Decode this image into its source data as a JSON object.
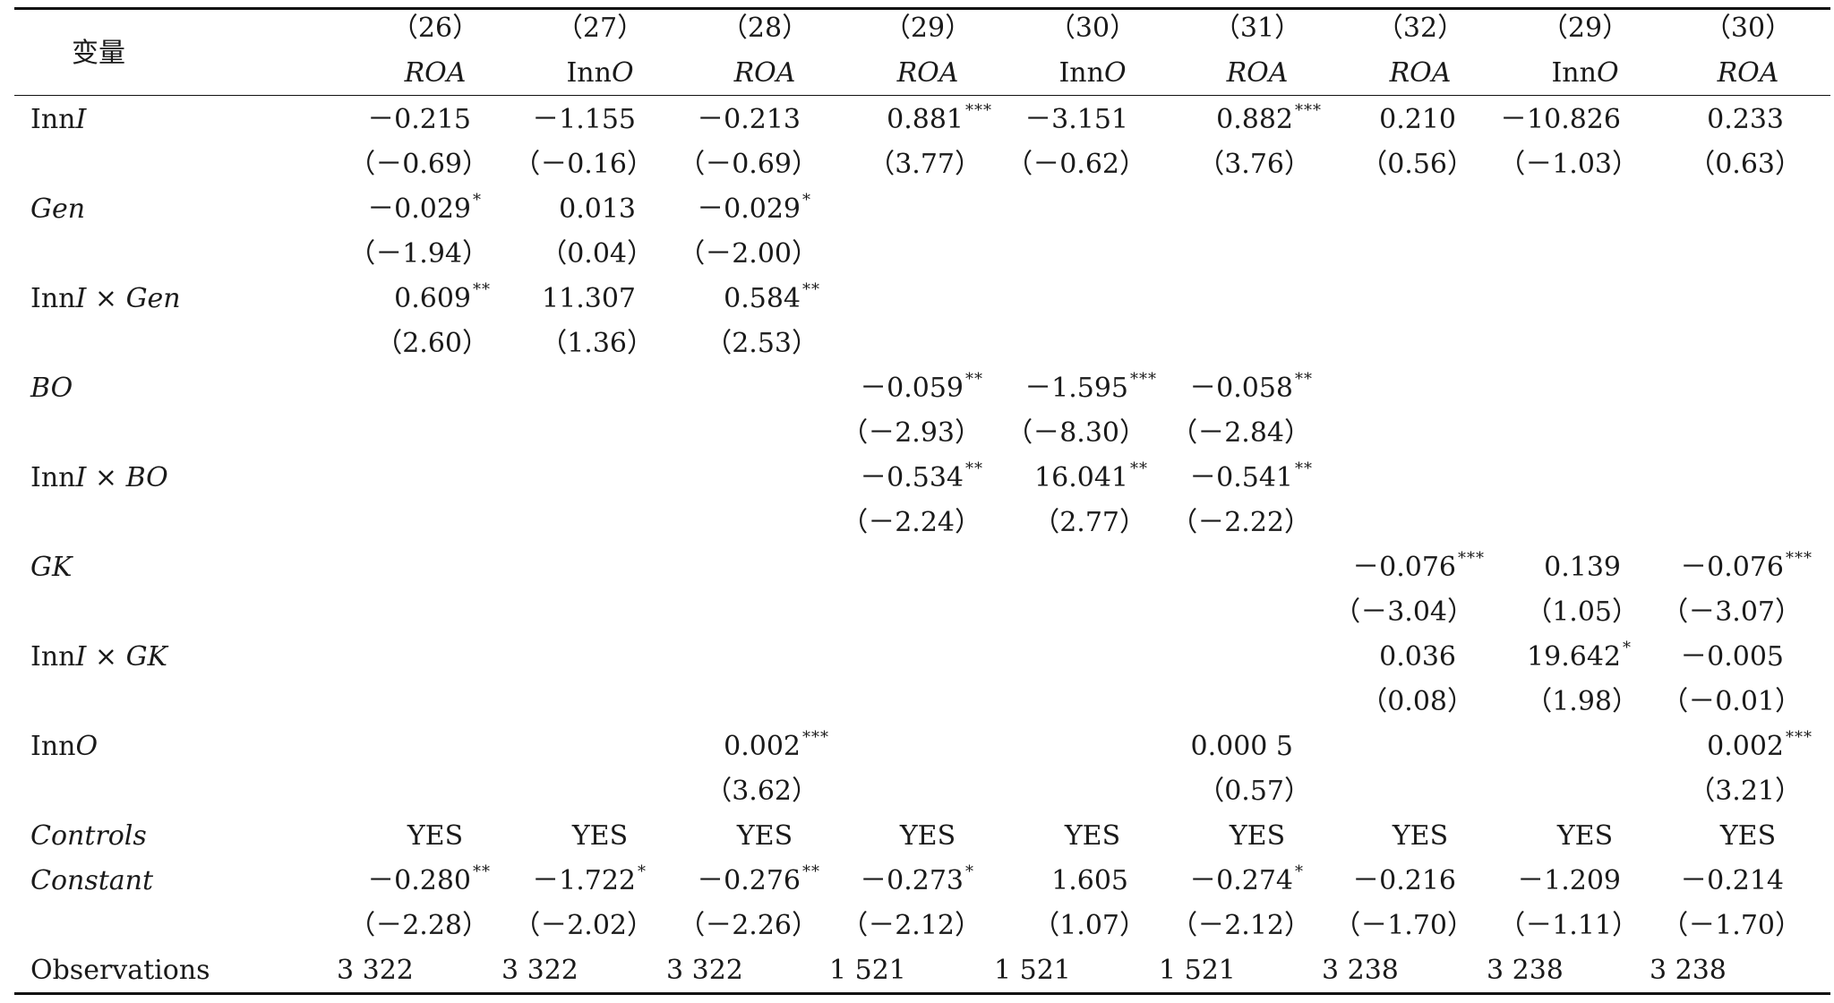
{
  "header": {
    "var_label": "变量",
    "nums": [
      "（26）",
      "（27）",
      "（28）",
      "（29）",
      "（30）",
      "（31）",
      "（32）",
      "（29）",
      "（30）"
    ],
    "deps": [
      "ROA",
      "InnO",
      "ROA",
      "ROA",
      "InnO",
      "ROA",
      "ROA",
      "InnO",
      "ROA"
    ]
  },
  "rows": {
    "InnI": {
      "label": "InnI",
      "c1": {
        "v": "－0.215",
        "s": "",
        "t": "（－0.69）"
      },
      "c2": {
        "v": "－1.155",
        "s": "",
        "t": "（－0.16）"
      },
      "c3": {
        "v": "－0.213",
        "s": "",
        "t": "（－0.69）"
      },
      "c4": {
        "v": "0.881",
        "s": "***",
        "t": "（3.77）"
      },
      "c5": {
        "v": "－3.151",
        "s": "",
        "t": "（－0.62）"
      },
      "c6": {
        "v": "0.882",
        "s": "***",
        "t": "（3.76）"
      },
      "c7": {
        "v": "0.210",
        "s": "",
        "t": "（0.56）"
      },
      "c8": {
        "v": "－10.826",
        "s": "",
        "t": "（－1.03）"
      },
      "c9": {
        "v": "0.233",
        "s": "",
        "t": "（0.63）"
      }
    },
    "Gen": {
      "label": "Gen",
      "c1": {
        "v": "－0.029",
        "s": "*",
        "t": "（－1.94）"
      },
      "c2": {
        "v": "0.013",
        "s": "",
        "t": "（0.04）"
      },
      "c3": {
        "v": "－0.029",
        "s": "*",
        "t": "（－2.00）"
      }
    },
    "InnIxGen": {
      "label": "InnI × Gen",
      "c1": {
        "v": "0.609",
        "s": "**",
        "t": "（2.60）"
      },
      "c2": {
        "v": "11.307",
        "s": "",
        "t": "（1.36）"
      },
      "c3": {
        "v": "0.584",
        "s": "**",
        "t": "（2.53）"
      }
    },
    "BO": {
      "label": "BO",
      "c4": {
        "v": "－0.059",
        "s": "**",
        "t": "（－2.93）"
      },
      "c5": {
        "v": "－1.595",
        "s": "***",
        "t": "（－8.30）"
      },
      "c6": {
        "v": "－0.058",
        "s": "**",
        "t": "（－2.84）"
      }
    },
    "InnIxBO": {
      "label": "InnI × BO",
      "c4": {
        "v": "－0.534",
        "s": "**",
        "t": "（－2.24）"
      },
      "c5": {
        "v": "16.041",
        "s": "**",
        "t": "（2.77）"
      },
      "c6": {
        "v": "－0.541",
        "s": "**",
        "t": "（－2.22）"
      }
    },
    "GK": {
      "label": "GK",
      "c7": {
        "v": "－0.076",
        "s": "***",
        "t": "（－3.04）"
      },
      "c8": {
        "v": "0.139",
        "s": "",
        "t": "（1.05）"
      },
      "c9": {
        "v": "－0.076",
        "s": "***",
        "t": "（－3.07）"
      }
    },
    "InnIxGK": {
      "label": "InnI × GK",
      "c7": {
        "v": "0.036",
        "s": "",
        "t": "（0.08）"
      },
      "c8": {
        "v": "19.642",
        "s": "*",
        "t": "（1.98）"
      },
      "c9": {
        "v": "－0.005",
        "s": "",
        "t": "（－0.01）"
      }
    },
    "InnO": {
      "label": "InnO",
      "c3": {
        "v": "0.002",
        "s": "***",
        "t": "（3.62）"
      },
      "c6": {
        "v": "0.000 5",
        "s": "",
        "t": "（0.57）"
      },
      "c9": {
        "v": "0.002",
        "s": "***",
        "t": "（3.21）"
      }
    },
    "Controls": {
      "label": "Controls",
      "values": [
        "YES",
        "YES",
        "YES",
        "YES",
        "YES",
        "YES",
        "YES",
        "YES",
        "YES"
      ]
    },
    "Constant": {
      "label": "Constant",
      "c1": {
        "v": "－0.280",
        "s": "**",
        "t": "（－2.28）"
      },
      "c2": {
        "v": "－1.722",
        "s": "*",
        "t": "（－2.02）"
      },
      "c3": {
        "v": "－0.276",
        "s": "**",
        "t": "（－2.26）"
      },
      "c4": {
        "v": "－0.273",
        "s": "*",
        "t": "（－2.12）"
      },
      "c5": {
        "v": "1.605",
        "s": "",
        "t": "（1.07）"
      },
      "c6": {
        "v": "－0.274",
        "s": "*",
        "t": "（－2.12）"
      },
      "c7": {
        "v": "－0.216",
        "s": "",
        "t": "（－1.70）"
      },
      "c8": {
        "v": "－1.209",
        "s": "",
        "t": "（－1.11）"
      },
      "c9": {
        "v": "－0.214",
        "s": "",
        "t": "（－1.70）"
      }
    },
    "Observations": {
      "label": "Observations",
      "values": [
        "3 322",
        "3 322",
        "3 322",
        "1 521",
        "1 521",
        "1 521",
        "3 238",
        "3 238",
        "3 238"
      ]
    }
  }
}
